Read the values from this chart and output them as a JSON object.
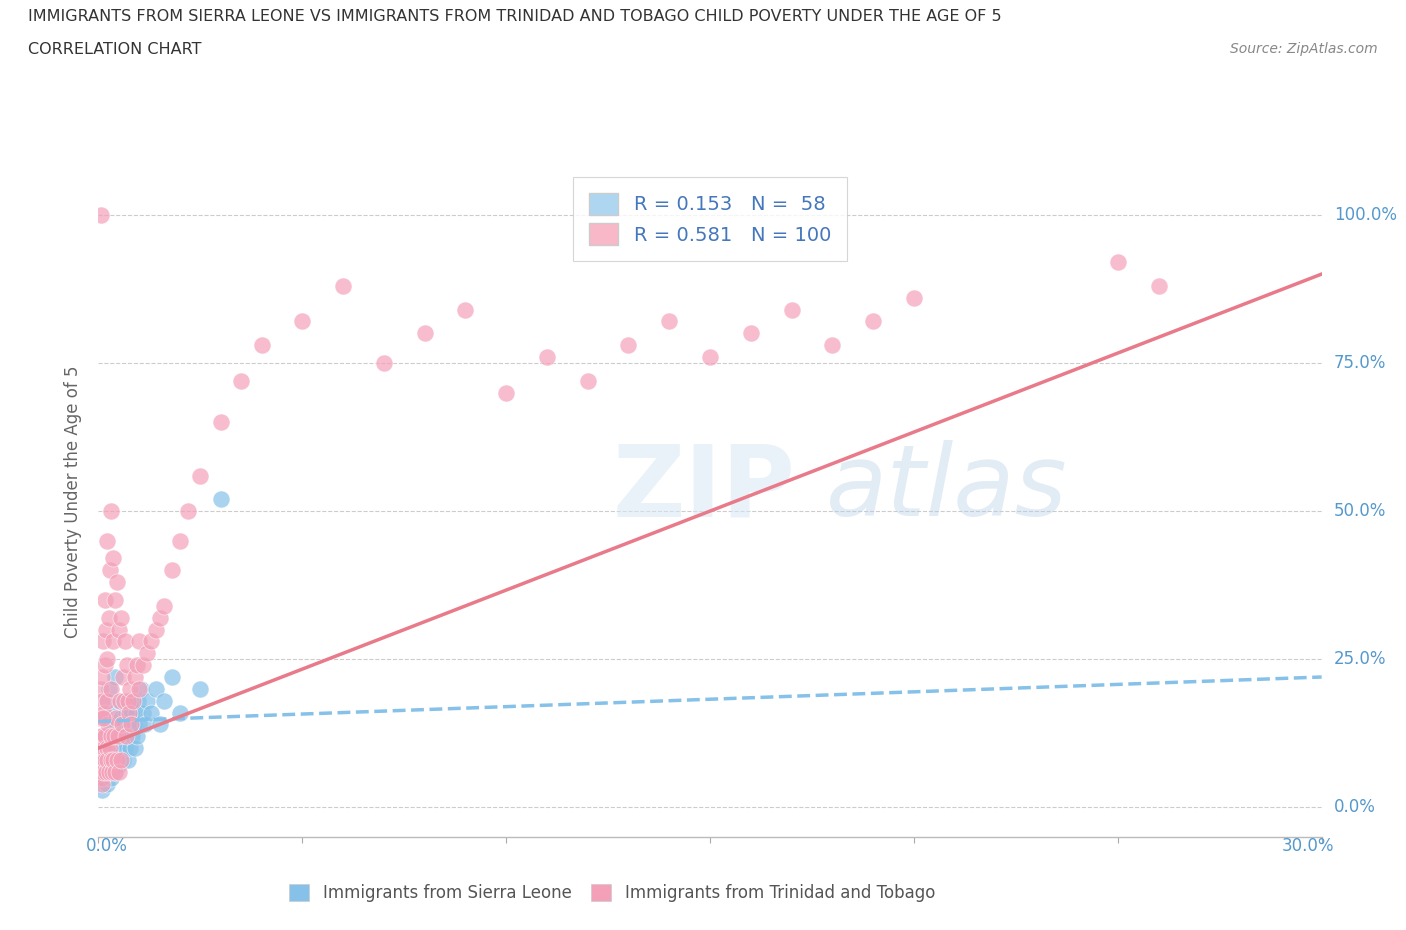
{
  "title_line1": "IMMIGRANTS FROM SIERRA LEONE VS IMMIGRANTS FROM TRINIDAD AND TOBAGO CHILD POVERTY UNDER THE AGE OF 5",
  "title_line2": "CORRELATION CHART",
  "source_text": "Source: ZipAtlas.com",
  "ylabel": "Child Poverty Under the Age of 5",
  "ytick_vals": [
    0.0,
    25.0,
    50.0,
    75.0,
    100.0
  ],
  "ytick_labels": [
    "0.0%",
    "25.0%",
    "50.0%",
    "75.0%",
    "100.0%"
  ],
  "xlim": [
    0.0,
    30.0
  ],
  "ylim": [
    -5.0,
    108.0
  ],
  "watermark_zip": "ZIP",
  "watermark_atlas": "atlas",
  "legend_r1": "R = 0.153",
  "legend_n1": "N =  58",
  "legend_r2": "R = 0.581",
  "legend_n2": "N = 100",
  "color_blue": "#85c1e8",
  "color_pink": "#f4a0b8",
  "color_blue_line": "#85c1e8",
  "color_pink_line": "#e87a8a",
  "legend_box_blue": "#aed6f1",
  "legend_box_pink": "#f9b8c8",
  "sierra_leone_x": [
    0.05,
    0.08,
    0.1,
    0.1,
    0.12,
    0.15,
    0.15,
    0.18,
    0.2,
    0.2,
    0.22,
    0.25,
    0.25,
    0.28,
    0.3,
    0.3,
    0.32,
    0.35,
    0.38,
    0.4,
    0.4,
    0.42,
    0.45,
    0.48,
    0.5,
    0.5,
    0.52,
    0.55,
    0.58,
    0.6,
    0.62,
    0.65,
    0.68,
    0.7,
    0.72,
    0.75,
    0.78,
    0.8,
    0.82,
    0.85,
    0.88,
    0.9,
    0.92,
    0.95,
    0.98,
    1.0,
    1.05,
    1.1,
    1.15,
    1.2,
    1.3,
    1.4,
    1.5,
    1.6,
    1.8,
    2.0,
    2.5,
    3.0
  ],
  "sierra_leone_y": [
    5.0,
    8.0,
    3.0,
    12.0,
    6.0,
    10.0,
    15.0,
    8.0,
    4.0,
    18.0,
    7.0,
    12.0,
    20.0,
    9.0,
    5.0,
    14.0,
    11.0,
    8.0,
    16.0,
    6.0,
    22.0,
    10.0,
    14.0,
    7.0,
    12.0,
    18.0,
    9.0,
    15.0,
    11.0,
    8.0,
    14.0,
    10.0,
    16.0,
    12.0,
    8.0,
    14.0,
    10.0,
    16.0,
    12.0,
    18.0,
    14.0,
    10.0,
    16.0,
    12.0,
    18.0,
    14.0,
    20.0,
    16.0,
    14.0,
    18.0,
    16.0,
    20.0,
    14.0,
    18.0,
    22.0,
    16.0,
    20.0,
    52.0
  ],
  "trinidad_x": [
    0.02,
    0.03,
    0.04,
    0.05,
    0.06,
    0.07,
    0.08,
    0.08,
    0.09,
    0.1,
    0.1,
    0.1,
    0.12,
    0.12,
    0.13,
    0.14,
    0.15,
    0.15,
    0.15,
    0.16,
    0.18,
    0.18,
    0.2,
    0.2,
    0.2,
    0.22,
    0.22,
    0.24,
    0.25,
    0.25,
    0.28,
    0.28,
    0.3,
    0.3,
    0.3,
    0.32,
    0.33,
    0.35,
    0.35,
    0.35,
    0.38,
    0.4,
    0.4,
    0.42,
    0.45,
    0.45,
    0.48,
    0.5,
    0.5,
    0.52,
    0.55,
    0.55,
    0.58,
    0.6,
    0.62,
    0.65,
    0.68,
    0.7,
    0.72,
    0.75,
    0.78,
    0.8,
    0.85,
    0.9,
    0.95,
    1.0,
    1.0,
    1.1,
    1.2,
    1.3,
    1.4,
    1.5,
    1.6,
    1.8,
    2.0,
    2.2,
    2.5,
    3.0,
    3.5,
    4.0,
    5.0,
    6.0,
    7.0,
    8.0,
    9.0,
    10.0,
    11.0,
    12.0,
    13.0,
    14.0,
    15.0,
    16.0,
    17.0,
    18.0,
    19.0,
    20.0,
    25.0,
    26.0,
    0.06,
    0.11
  ],
  "trinidad_y": [
    10.0,
    6.0,
    15.0,
    8.0,
    20.0,
    12.0,
    5.0,
    18.0,
    8.0,
    4.0,
    12.0,
    22.0,
    6.0,
    28.0,
    10.0,
    16.0,
    8.0,
    24.0,
    35.0,
    12.0,
    6.0,
    30.0,
    10.0,
    18.0,
    45.0,
    8.0,
    25.0,
    14.0,
    6.0,
    32.0,
    10.0,
    40.0,
    8.0,
    20.0,
    50.0,
    12.0,
    6.0,
    8.0,
    28.0,
    42.0,
    12.0,
    6.0,
    35.0,
    15.0,
    8.0,
    38.0,
    12.0,
    6.0,
    30.0,
    18.0,
    8.0,
    32.0,
    14.0,
    22.0,
    18.0,
    28.0,
    12.0,
    24.0,
    18.0,
    16.0,
    20.0,
    14.0,
    18.0,
    22.0,
    24.0,
    20.0,
    28.0,
    24.0,
    26.0,
    28.0,
    30.0,
    32.0,
    34.0,
    40.0,
    45.0,
    50.0,
    56.0,
    65.0,
    72.0,
    78.0,
    82.0,
    88.0,
    75.0,
    80.0,
    84.0,
    70.0,
    76.0,
    72.0,
    78.0,
    82.0,
    76.0,
    80.0,
    84.0,
    78.0,
    82.0,
    86.0,
    92.0,
    88.0,
    100.0,
    15.0
  ],
  "sl_line_x": [
    0.0,
    30.0
  ],
  "sl_line_y": [
    14.5,
    22.0
  ],
  "tt_line_x": [
    0.0,
    30.0
  ],
  "tt_line_y": [
    10.0,
    90.0
  ]
}
